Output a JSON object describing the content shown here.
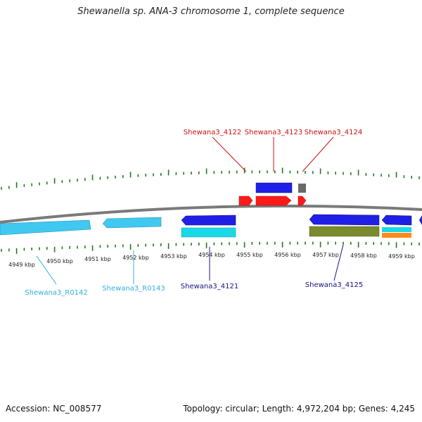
{
  "title": "Shewanella sp. ANA-3 chromosome 1, complete sequence",
  "footer": {
    "accession": "Accession: NC_008577",
    "summary": "Topology: circular; Length: 4,972,204 bp; Genes: 4,245"
  },
  "colors": {
    "backbone": "#7a7a7a",
    "ticks": "#1e7a1e",
    "red": "#ff1a1a",
    "blue": "#1f1fe6",
    "gray": "#6a6a6a",
    "lightblue": "#40c8f0",
    "cyan": "#1ad9e6",
    "olive": "#7a8a2e",
    "orange": "#ff8c1a",
    "navy_label": "#141480",
    "red_label": "#cc1010",
    "lightblue_label": "#30b0dc"
  },
  "kbp_labels": [
    "4949 kbp",
    "4950 kbp",
    "4951 kbp",
    "4952 kbp",
    "4953 kbp",
    "4954 kbp",
    "4955 kbp",
    "4956 kbp",
    "4957 kbp",
    "4958 kbp",
    "4959 kbp"
  ],
  "gene_labels": [
    {
      "id": "g4122",
      "text": "Shewana3_4122",
      "color": "red"
    },
    {
      "id": "g4123",
      "text": "Shewana3_4123",
      "color": "red"
    },
    {
      "id": "g4124",
      "text": "Shewana3_4124",
      "color": "red"
    },
    {
      "id": "r0142",
      "text": "Shewana3_R0142",
      "color": "lightblue"
    },
    {
      "id": "r0143",
      "text": "Shewana3_R0143",
      "color": "lightblue"
    },
    {
      "id": "g4121",
      "text": "Shewana3_4121",
      "color": "navy"
    },
    {
      "id": "g4125",
      "text": "Shewana3_4125",
      "color": "navy"
    }
  ]
}
